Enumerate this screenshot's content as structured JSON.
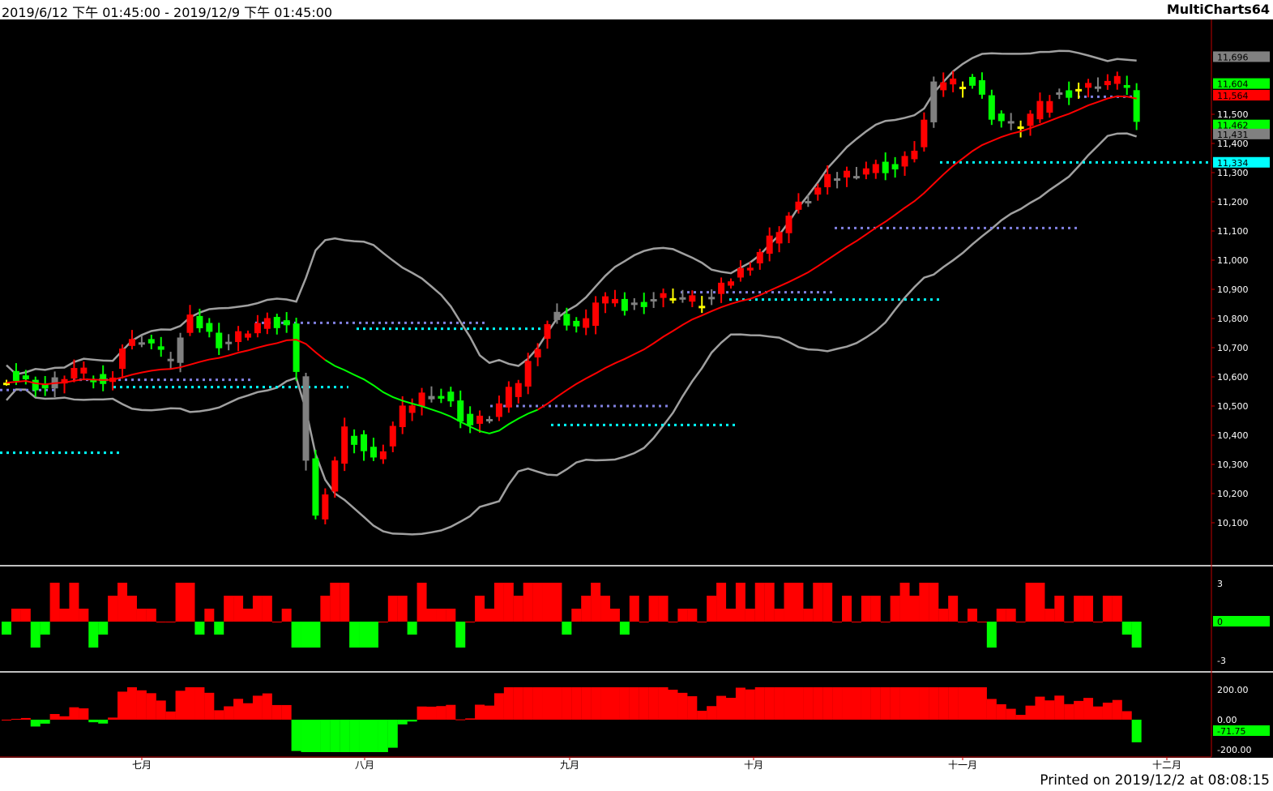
{
  "header": {
    "date_range": "2019/6/12 下午 01:45:00 - 2019/12/9 下午 01:45:00",
    "app_name": "MultiCharts64"
  },
  "footer": {
    "printed": "Printed on 2019/12/2 at 08:08:15"
  },
  "colors": {
    "up": "#ff0000",
    "down": "#00ff00",
    "doji_yellow": "#ffff00",
    "gray": "#808080",
    "ma": "#ff0000",
    "ma_green": "#00ff00",
    "band": "#a0a0a0",
    "cyan": "#00ffff",
    "lavender": "#8080e0"
  },
  "chart_data": {
    "type": "candlestick",
    "price_axis": {
      "ticks": [
        "11,500",
        "11,400",
        "11,300",
        "11,200",
        "11,100",
        "11,000",
        "10,900",
        "10,800",
        "10,700",
        "10,600",
        "10,500",
        "10,400",
        "10,300",
        "10,200",
        "10,100"
      ]
    },
    "price_markers": [
      {
        "label": "11,696",
        "color": "#808080",
        "value": 11696
      },
      {
        "label": "11,604",
        "color": "#00ff00",
        "value": 11604
      },
      {
        "label": "11,564",
        "color": "#ff0000",
        "value": 11564
      },
      {
        "label": "11,462",
        "color": "#00ff00",
        "value": 11462
      },
      {
        "label": "11,431",
        "color": "#808080",
        "value": 11431
      },
      {
        "label": "11,334",
        "color": "#00ffff",
        "value": 11334
      }
    ],
    "x_labels": [
      "七月",
      "八月",
      "九月",
      "十月",
      "十一月",
      "十二月"
    ],
    "osc1": {
      "ticks": [
        "3",
        "-3"
      ],
      "last": "0"
    },
    "osc2": {
      "ticks": [
        "200.00",
        "0.00",
        "-200.00"
      ],
      "last": "-71.75"
    }
  }
}
